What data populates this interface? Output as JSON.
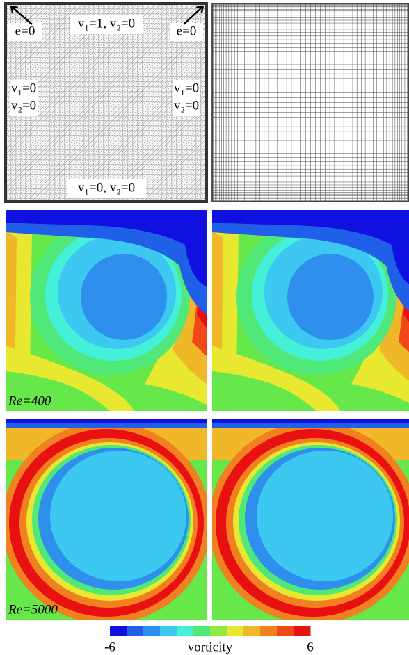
{
  "figure": {
    "mesh_labels": {
      "top": "v₁=1, v₂=0",
      "corner_left": "e=0",
      "corner_right": "e=0",
      "left": [
        "v₁=0",
        "v₂=0"
      ],
      "right": [
        "v₁=0",
        "v₂=0"
      ],
      "bottom": "v₁=0, v₂=0"
    },
    "rows": [
      {
        "label": "Re=400"
      },
      {
        "label": "Re=5000"
      }
    ],
    "colorbar": {
      "label": "vorticity",
      "lim": [
        -6,
        6
      ],
      "ticks": [
        -6,
        6
      ],
      "colors": [
        "#1010e0",
        "#2060e8",
        "#2e90ec",
        "#3cc8f0",
        "#44f0d8",
        "#50e878",
        "#90e840",
        "#e8e830",
        "#f0b828",
        "#f08020",
        "#f04818",
        "#e81010"
      ]
    }
  }
}
